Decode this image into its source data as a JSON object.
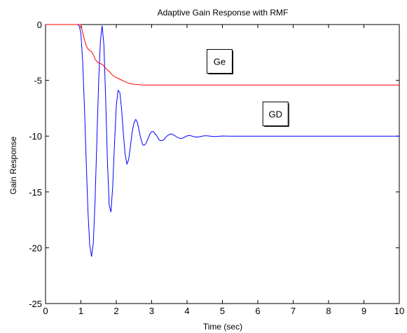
{
  "chart_data": {
    "type": "line",
    "title": "Adaptive Gain Response with RMF",
    "xlabel": "Time (sec)",
    "ylabel": "Gain Response",
    "xlim": [
      0,
      10
    ],
    "ylim": [
      -25,
      0
    ],
    "xticks": [
      0,
      1,
      2,
      3,
      4,
      5,
      6,
      7,
      8,
      9,
      10
    ],
    "yticks": [
      0,
      -5,
      -10,
      -15,
      -20,
      -25
    ],
    "grid": false,
    "annotations": [
      {
        "text": "Ge",
        "x": 4.92,
        "y": -3.3
      },
      {
        "text": "GD",
        "x": 6.5,
        "y": -8.0
      }
    ],
    "series": [
      {
        "color": "#0000ff",
        "x": [
          0,
          0.9,
          0.95,
          1.0,
          1.05,
          1.1,
          1.15,
          1.2,
          1.25,
          1.3,
          1.35,
          1.4,
          1.45,
          1.5,
          1.55,
          1.6,
          1.65,
          1.7,
          1.75,
          1.8,
          1.85,
          1.9,
          1.95,
          2.0,
          2.05,
          2.1,
          2.15,
          2.2,
          2.25,
          2.3,
          2.35,
          2.4,
          2.45,
          2.5,
          2.55,
          2.6,
          2.65,
          2.7,
          2.75,
          2.8,
          2.85,
          2.9,
          2.95,
          3.0,
          3.05,
          3.1,
          3.15,
          3.2,
          3.25,
          3.3,
          3.35,
          3.4,
          3.45,
          3.5,
          3.55,
          3.6,
          3.65,
          3.7,
          3.75,
          3.8,
          3.85,
          3.9,
          3.95,
          4.0,
          4.05,
          4.1,
          4.15,
          4.2,
          4.25,
          4.3,
          4.35,
          4.4,
          4.45,
          4.5,
          4.55,
          4.6,
          4.7,
          4.8,
          4.9,
          5.0,
          5.2,
          5.5,
          6.0,
          7.0,
          8.0,
          9.0,
          10.0
        ],
        "y": [
          0,
          0,
          -0.1,
          -0.8,
          -3.3,
          -7.5,
          -12.3,
          -16.8,
          -19.8,
          -20.8,
          -19.6,
          -15.8,
          -10.5,
          -5.2,
          -1.5,
          -0.1,
          -1.8,
          -6.6,
          -12.3,
          -16.2,
          -16.8,
          -14.5,
          -10.6,
          -7.3,
          -5.9,
          -6.1,
          -7.6,
          -9.8,
          -11.6,
          -12.5,
          -12.1,
          -10.9,
          -9.6,
          -8.8,
          -8.5,
          -8.8,
          -9.6,
          -10.3,
          -10.8,
          -10.8,
          -10.6,
          -10.2,
          -9.8,
          -9.6,
          -9.6,
          -9.8,
          -10.0,
          -10.3,
          -10.4,
          -10.4,
          -10.3,
          -10.1,
          -9.95,
          -9.85,
          -9.8,
          -9.85,
          -9.95,
          -10.05,
          -10.15,
          -10.2,
          -10.2,
          -10.15,
          -10.05,
          -9.98,
          -9.95,
          -9.96,
          -10.0,
          -10.05,
          -10.08,
          -10.08,
          -10.05,
          -10.02,
          -9.99,
          -9.97,
          -9.97,
          -9.98,
          -10.02,
          -10.03,
          -10.01,
          -9.99,
          -10.0,
          -10.0,
          -10.0,
          -10.0,
          -10.0,
          -10.0,
          -10.0
        ]
      },
      {
        "color": "#ff0000",
        "x": [
          0,
          1.0,
          1.05,
          1.1,
          1.15,
          1.2,
          1.25,
          1.3,
          1.35,
          1.4,
          1.45,
          1.5,
          1.55,
          1.6,
          1.7,
          1.8,
          1.9,
          2.0,
          2.1,
          2.2,
          2.3,
          2.4,
          2.5,
          2.6,
          2.7,
          2.8,
          3.0,
          4.0,
          6.0,
          8.0,
          10.0
        ],
        "y": [
          0,
          0,
          -0.7,
          -1.4,
          -1.9,
          -2.2,
          -2.3,
          -2.45,
          -2.7,
          -3.1,
          -3.3,
          -3.45,
          -3.5,
          -3.55,
          -3.9,
          -4.2,
          -4.55,
          -4.75,
          -4.9,
          -5.05,
          -5.2,
          -5.3,
          -5.35,
          -5.38,
          -5.4,
          -5.42,
          -5.42,
          -5.42,
          -5.42,
          -5.42,
          -5.42
        ]
      }
    ]
  }
}
